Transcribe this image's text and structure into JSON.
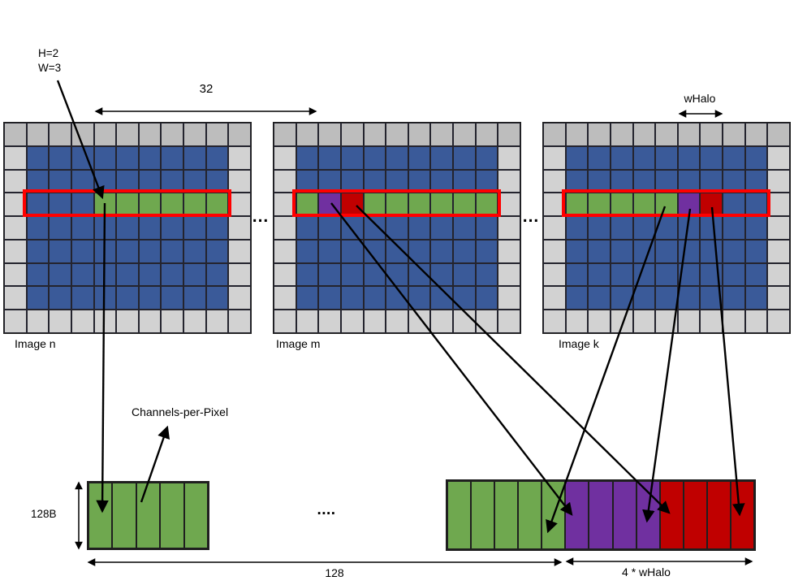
{
  "labels": {
    "kernel_h": "H=2",
    "kernel_w": "W=3",
    "tile_width": "32",
    "whalo": "wHalo",
    "channels_per_pixel": "Channels-per-Pixel",
    "buffer_height": "128B",
    "buffer_width": "128",
    "halo_width": "4 * wHalo",
    "dots_between_images_1": "...",
    "dots_between_images_2": "...",
    "dots_between_buffers": "...."
  },
  "colors": {
    "blue": "#3A5A99",
    "green": "#6FA84F",
    "purple": "#7030A0",
    "red": "#C00000",
    "gray_top": "#BDBDBD",
    "gray_ring": "#D2D2D2",
    "tile_outline": "#FF0000",
    "arrow": "#000000"
  },
  "grids": [
    {
      "id": "n",
      "label": "Image n",
      "cols": 11,
      "rows": 9,
      "highlight_row": 3,
      "row_pattern": [
        "blue",
        "blue",
        "blue",
        "green",
        "green",
        "green",
        "green",
        "green",
        "green"
      ]
    },
    {
      "id": "m",
      "label": "Image m",
      "cols": 11,
      "rows": 9,
      "highlight_row": 3,
      "row_pattern": [
        "green",
        "purple",
        "red",
        "green",
        "green",
        "green",
        "green",
        "green",
        "green"
      ]
    },
    {
      "id": "k",
      "label": "Image k",
      "cols": 11,
      "rows": 9,
      "highlight_row": 3,
      "row_pattern": [
        "green",
        "green",
        "green",
        "green",
        "green",
        "purple",
        "red",
        "blue",
        "blue"
      ]
    }
  ],
  "buffers": {
    "left": {
      "segments": [
        {
          "color": "green",
          "cells": 5
        }
      ]
    },
    "right": {
      "segments": [
        {
          "color": "green",
          "cells": 5
        },
        {
          "color": "purple",
          "cells": 4
        },
        {
          "color": "red",
          "cells": 4
        }
      ]
    }
  }
}
